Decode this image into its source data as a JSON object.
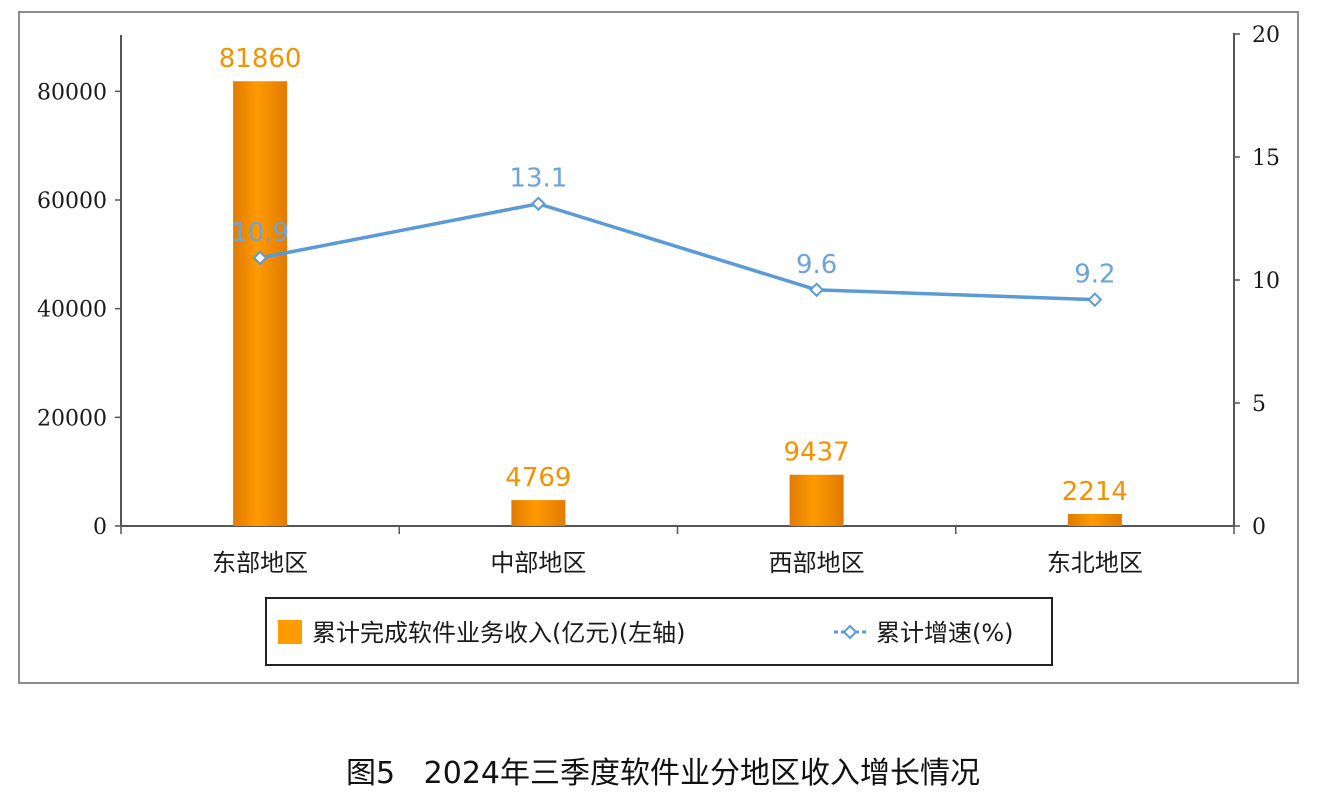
{
  "caption": "图5   2024年三季度软件业分地区收入增长情况",
  "colors": {
    "bar": "#ff9a00",
    "bar_dark": "#e07b00",
    "bar_label": "#f39200",
    "line": "#5b9bd5",
    "line_label": "#6fa3d6",
    "axis": "#555555"
  },
  "chart_data": {
    "type": "bar",
    "categories": [
      "东部地区",
      "中部地区",
      "西部地区",
      "东北地区"
    ],
    "series": [
      {
        "name": "累计完成软件业务收入(亿元)(左轴)",
        "type": "bar",
        "axis": "left",
        "values": [
          81860,
          4769,
          9437,
          2214
        ],
        "labels": [
          "81860",
          "4769",
          "9437",
          "2214"
        ]
      },
      {
        "name": "累计增速(%)",
        "type": "line",
        "axis": "right",
        "values": [
          10.9,
          13.1,
          9.6,
          9.2
        ],
        "labels": [
          "10.9",
          "13.1",
          "9.6",
          "9.2"
        ]
      }
    ],
    "y_left": {
      "ylim": [
        0,
        90000
      ],
      "ticks": [
        0,
        20000,
        40000,
        60000,
        80000
      ],
      "tick_labels": [
        "0",
        "20000",
        "40000",
        "60000",
        "80000"
      ]
    },
    "y_right": {
      "ylim": [
        0,
        20
      ],
      "ticks": [
        0,
        5,
        10,
        15,
        20
      ],
      "tick_labels": [
        "0",
        "5",
        "10",
        "15",
        "20"
      ]
    },
    "legend": {
      "position": "bottom",
      "items": [
        "累计完成软件业务收入(亿元)(左轴)",
        "累计增速(%)"
      ]
    },
    "grid": false
  }
}
